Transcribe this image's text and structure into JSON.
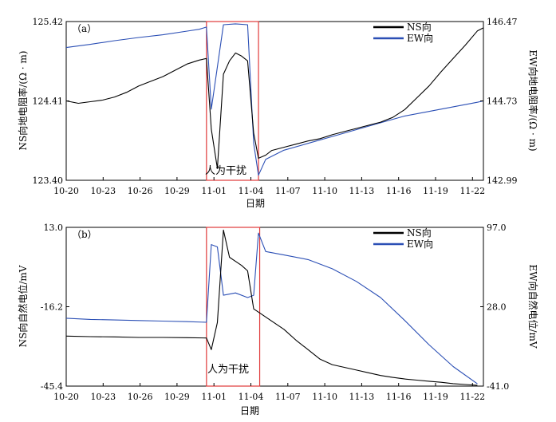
{
  "chart_data": [
    {
      "type": "line",
      "panel_label": "（a）",
      "xlabel": "日期",
      "ylabel_left": "NS向地电阻率/(Ω · m)",
      "ylabel_right": "EW向地电阻率/(Ω · m)",
      "x_ticks": [
        "10-20",
        "10-23",
        "10-26",
        "10-29",
        "11-01",
        "11-04",
        "11-07",
        "11-10",
        "11-13",
        "11-16",
        "11-19",
        "11-22"
      ],
      "x_range_days": [
        0,
        34.5
      ],
      "left_ylim": [
        123.4,
        125.42
      ],
      "left_ticks": [
        "125.42",
        "124.41",
        "123.40"
      ],
      "right_ylim": [
        142.99,
        146.47
      ],
      "right_ticks": [
        "146.47",
        "144.73",
        "142.99"
      ],
      "annotation": "人为干扰",
      "interference_days": [
        11.6,
        15.9
      ],
      "legend": [
        {
          "name": "NS向",
          "color": "#000000"
        },
        {
          "name": "EW向",
          "color": "#2b4fb5"
        }
      ],
      "series": [
        {
          "name": "NS向",
          "axis": "left",
          "color": "#000000",
          "x": [
            0,
            1,
            2,
            3,
            4,
            5,
            6,
            7,
            8,
            9,
            10,
            11,
            11.6,
            12,
            12.5,
            13,
            13.5,
            14,
            14.5,
            15,
            15.5,
            15.9,
            16.5,
            17,
            18,
            19,
            20,
            21,
            22,
            23,
            24,
            25,
            26,
            27,
            28,
            29,
            30,
            31,
            32,
            33,
            34,
            34.5
          ],
          "y": [
            124.41,
            124.38,
            124.4,
            124.42,
            124.46,
            124.52,
            124.6,
            124.66,
            124.72,
            124.8,
            124.88,
            124.93,
            124.95,
            124.05,
            123.55,
            124.75,
            124.92,
            125.02,
            124.98,
            124.92,
            124.0,
            123.68,
            123.72,
            123.78,
            123.82,
            123.86,
            123.9,
            123.93,
            123.98,
            124.02,
            124.06,
            124.1,
            124.14,
            124.2,
            124.3,
            124.45,
            124.6,
            124.78,
            124.95,
            125.12,
            125.3,
            125.34
          ]
        },
        {
          "name": "EW向",
          "axis": "right",
          "color": "#2b4fb5",
          "x": [
            0,
            2,
            4,
            6,
            8,
            10,
            11,
            11.6,
            12,
            13,
            14,
            15,
            15.5,
            15.9,
            16.5,
            18,
            20,
            22,
            24,
            26,
            28,
            30,
            32,
            34,
            34.5
          ],
          "y": [
            145.9,
            145.97,
            146.05,
            146.12,
            146.18,
            146.26,
            146.3,
            146.35,
            144.55,
            146.4,
            146.42,
            146.4,
            143.8,
            143.1,
            143.45,
            143.65,
            143.8,
            143.95,
            144.1,
            144.25,
            144.4,
            144.5,
            144.6,
            144.7,
            144.73
          ]
        }
      ]
    },
    {
      "type": "line",
      "panel_label": "（b）",
      "xlabel": "日期",
      "ylabel_left": "NS向自然电位/mV",
      "ylabel_right": "EW向自然电位/mV",
      "x_ticks": [
        "10-20",
        "10-23",
        "10-26",
        "10-29",
        "11-01",
        "11-04",
        "11-07",
        "11-10",
        "11-13",
        "11-16",
        "11-19",
        "11-22"
      ],
      "x_range_days": [
        0,
        34.5
      ],
      "left_ylim": [
        -45.4,
        13.0
      ],
      "left_ticks": [
        "13.0",
        "-16.2",
        "-45.4"
      ],
      "right_ylim": [
        -41.0,
        97.0
      ],
      "right_ticks": [
        "97.0",
        "28.0",
        "-41.0"
      ],
      "annotation": "人为干扰",
      "interference_days": [
        11.6,
        16.0
      ],
      "legend": [
        {
          "name": "NS向",
          "color": "#000000"
        },
        {
          "name": "EW向",
          "color": "#2b4fb5"
        }
      ],
      "series": [
        {
          "name": "NS向",
          "axis": "left",
          "color": "#000000",
          "x": [
            0,
            2,
            4,
            6,
            8,
            10,
            11.6,
            12,
            12.5,
            13,
            13.5,
            14,
            14.5,
            15,
            15.5,
            16,
            17,
            18,
            19,
            20,
            21,
            22,
            23,
            24,
            25,
            26,
            27,
            28,
            29,
            30,
            31,
            32,
            33,
            34
          ],
          "y": [
            -27.0,
            -27.2,
            -27.3,
            -27.5,
            -27.5,
            -27.6,
            -27.7,
            -32.0,
            -22.0,
            12.0,
            2.0,
            0.5,
            -1.0,
            -3.0,
            -17.0,
            -18.5,
            -21.5,
            -24.5,
            -28.5,
            -32.0,
            -35.5,
            -37.5,
            -38.5,
            -39.5,
            -40.5,
            -41.5,
            -42.2,
            -42.8,
            -43.2,
            -43.6,
            -44.0,
            -44.5,
            -44.8,
            -45.1
          ]
        },
        {
          "name": "EW向",
          "axis": "right",
          "color": "#2b4fb5",
          "x": [
            0,
            2,
            4,
            6,
            8,
            10,
            11.6,
            12,
            12.5,
            13,
            14,
            15,
            15.5,
            15.9,
            16.5,
            18,
            20,
            22,
            24,
            26,
            28,
            30,
            32,
            34
          ],
          "y": [
            18.0,
            17.0,
            16.5,
            16.0,
            15.5,
            15.0,
            14.5,
            82.0,
            80.0,
            38.0,
            40.0,
            36.0,
            38.0,
            92.0,
            76.0,
            73.0,
            69.0,
            61.0,
            50.0,
            36.0,
            16.0,
            -5.0,
            -24.0,
            -39.0
          ]
        }
      ]
    }
  ]
}
